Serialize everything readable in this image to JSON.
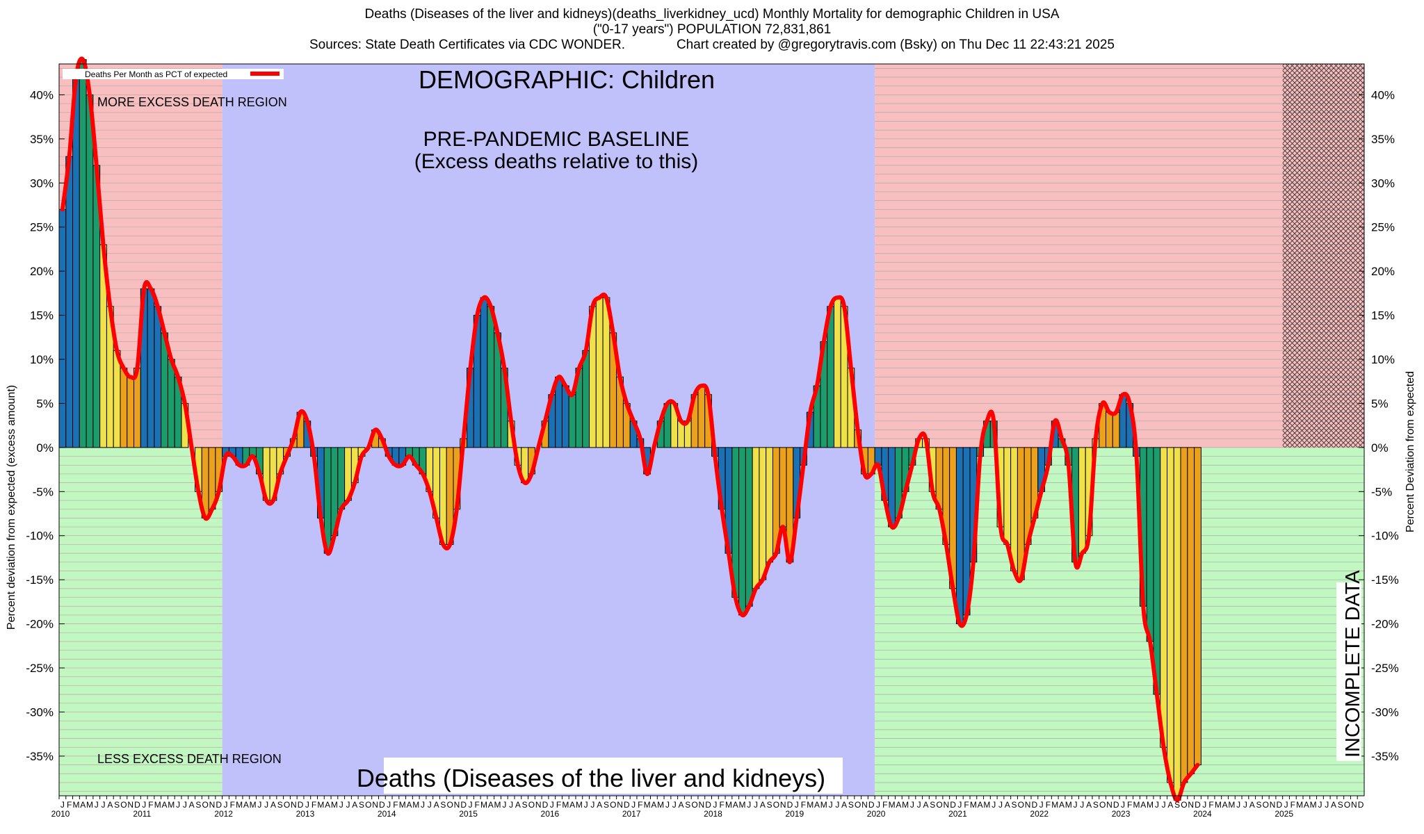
{
  "header": {
    "line1": "Deaths (Diseases of the liver and kidneys)(deaths_liverkidney_ucd) Monthly Mortality for demographic Children in USA",
    "line2": "(\"0-17 years\") POPULATION 72,831,861",
    "line3_sources": "Sources: State Death Certificates via CDC WONDER.",
    "line3_credit": "Chart created by @gregorytravis.com (Bsky) on Thu Dec 11 22:43:21 2025"
  },
  "chart_data": {
    "type": "bar",
    "title": "DEMOGRAPHIC: Children",
    "baseline_title": "PRE-PANDEMIC BASELINE",
    "baseline_subtitle": "(Excess deaths relative to this)",
    "more_label": "MORE EXCESS DEATH REGION",
    "less_label": "LESS EXCESS DEATH REGION",
    "bottom_title": "Deaths (Diseases of the liver and kidneys)",
    "incomplete_label": "INCOMPLETE DATA",
    "legend": "Deaths Per Month as PCT of expected",
    "ylabel_left": "Percent deviation from expected (excess amount)",
    "ylabel_right": "Percent Deviation from expected",
    "ylim": [
      -39.5,
      43.5
    ],
    "yticks": [
      -35,
      -30,
      -25,
      -20,
      -15,
      -10,
      -5,
      0,
      5,
      10,
      15,
      20,
      25,
      30,
      35,
      40
    ],
    "years": [
      "2010",
      "2011",
      "2012",
      "2013",
      "2014",
      "2015",
      "2016",
      "2017",
      "2018",
      "2019",
      "2020",
      "2021",
      "2022",
      "2023",
      "2024",
      "2025"
    ],
    "month_letters": [
      "J",
      "F",
      "M",
      "A",
      "M",
      "J",
      "J",
      "A",
      "S",
      "O",
      "N",
      "D"
    ],
    "baseline_range": [
      "2012-01",
      "2019-12"
    ],
    "incomplete_range": [
      "2025-01",
      "2025-10"
    ],
    "start": "2010-01",
    "values": [
      27,
      33,
      42,
      44,
      40,
      32,
      23,
      16,
      11,
      9,
      8,
      9,
      18,
      18,
      16,
      13,
      10,
      8,
      5,
      0,
      -5,
      -8,
      -7,
      -5,
      -1,
      -1,
      -2,
      -2,
      -1,
      -3,
      -6,
      -6,
      -3,
      -1,
      1,
      4,
      3,
      -1,
      -8,
      -12,
      -10,
      -7,
      -6,
      -4,
      -1,
      0,
      2,
      1,
      -1,
      -2,
      -2,
      -1,
      -2,
      -3,
      -5,
      -8,
      -11,
      -11,
      -7,
      1,
      9,
      15,
      17,
      16,
      13,
      9,
      3,
      -2,
      -4,
      -3,
      0,
      3,
      6,
      8,
      7,
      6,
      9,
      11,
      16,
      17,
      17,
      13,
      8,
      5,
      3,
      1,
      -3,
      0,
      3,
      5,
      5,
      3,
      3,
      6,
      7,
      6,
      -1,
      -7,
      -12,
      -17,
      -19,
      -18,
      -16,
      -15,
      -13,
      -12,
      -9,
      -13,
      -8,
      -2,
      4,
      7,
      12,
      16,
      17,
      16,
      9,
      2,
      -3,
      -3,
      -2,
      -6,
      -9,
      -8,
      -5,
      -2,
      1,
      1,
      -5,
      -7,
      -11,
      -16,
      -20,
      -19,
      -13,
      -1,
      3,
      3,
      -9,
      -11,
      -14,
      -15,
      -11,
      -8,
      -5,
      -2,
      3,
      1,
      -2,
      -13,
      -12,
      -10,
      1,
      5,
      4,
      4,
      6,
      5,
      -1,
      -18,
      -22,
      -28,
      -34,
      -38,
      -40,
      -38,
      -37,
      -36
    ]
  },
  "colors": {
    "more_region": "#f8bfc0",
    "less_region": "#c1f8c1",
    "baseline_region": "#c0c0fa",
    "line": "#ff0000",
    "bar_cycle": [
      "#1c70b4",
      "#1c9c6c",
      "#f0e04a",
      "#eca11c"
    ]
  }
}
